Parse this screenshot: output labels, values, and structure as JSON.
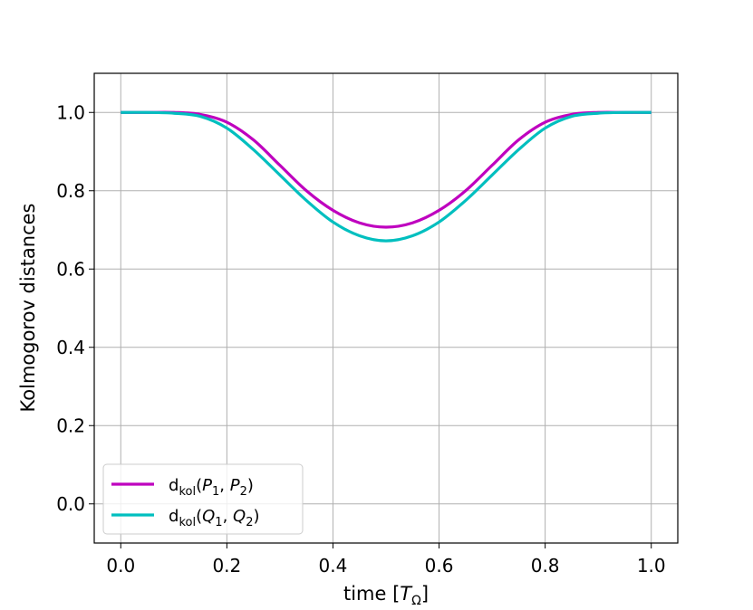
{
  "chart_data": {
    "type": "line",
    "xlabel": {
      "text": "time [",
      "symbol": "T",
      "subscript": "Ω",
      "close": "]"
    },
    "ylabel": "Kolmogorov distances",
    "xlim": [
      -0.05,
      1.05
    ],
    "ylim": [
      -0.1,
      1.1
    ],
    "xticks": [
      0.0,
      0.2,
      0.4,
      0.6,
      0.8,
      1.0
    ],
    "xtick_labels": [
      "0.0",
      "0.2",
      "0.4",
      "0.6",
      "0.8",
      "1.0"
    ],
    "yticks": [
      0.0,
      0.2,
      0.4,
      0.6,
      0.8,
      1.0
    ],
    "ytick_labels": [
      "0.0",
      "0.2",
      "0.4",
      "0.6",
      "0.8",
      "1.0"
    ],
    "grid": true,
    "legend_position": "lower-left",
    "x": [
      0.0,
      0.05,
      0.1,
      0.15,
      0.2,
      0.25,
      0.3,
      0.35,
      0.4,
      0.45,
      0.5,
      0.55,
      0.6,
      0.65,
      0.7,
      0.75,
      0.8,
      0.85,
      0.9,
      0.95,
      1.0
    ],
    "series": [
      {
        "name": "d_kol(P_1, P_2)",
        "legend": {
          "prefix": "d",
          "sub": "kol",
          "a": "P",
          "a_sub": "1",
          "b": "P",
          "b_sub": "2"
        },
        "color": "#bf00bf",
        "values": [
          1.0,
          1.0,
          1.0,
          0.995,
          0.975,
          0.93,
          0.865,
          0.8,
          0.75,
          0.718,
          0.707,
          0.718,
          0.75,
          0.8,
          0.865,
          0.93,
          0.975,
          0.995,
          1.0,
          1.0,
          1.0
        ]
      },
      {
        "name": "d_kol(Q_1, Q_2)",
        "legend": {
          "prefix": "d",
          "sub": "kol",
          "a": "Q",
          "a_sub": "1",
          "b": "Q",
          "b_sub": "2"
        },
        "color": "#00bfbf",
        "values": [
          1.0,
          1.0,
          0.998,
          0.99,
          0.96,
          0.905,
          0.84,
          0.775,
          0.72,
          0.685,
          0.672,
          0.685,
          0.72,
          0.775,
          0.84,
          0.905,
          0.96,
          0.99,
          0.998,
          1.0,
          1.0
        ]
      }
    ]
  }
}
